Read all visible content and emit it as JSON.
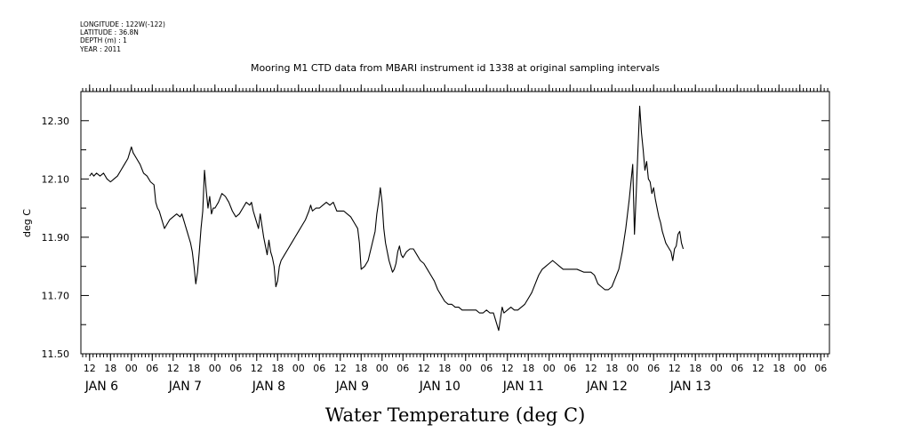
{
  "meta": {
    "longitude": "LONGITUDE : 122W(-122)",
    "latitude": "LATITUDE : 36.8N",
    "depth": "DEPTH (m) : 1",
    "year": "YEAR : 2011"
  },
  "chart_data": {
    "type": "line",
    "title": "Mooring M1 CTD data from MBARI instrument id 1338 at original sampling intervals",
    "xlabel": "Water Temperature (deg C)",
    "ylabel": "deg C",
    "xlim": [
      12,
      216
    ],
    "ylim": [
      11.5,
      12.4
    ],
    "yticks": [
      "11.50",
      "11.70",
      "11.90",
      "12.10",
      "12.30"
    ],
    "ytick_values": [
      11.5,
      11.7,
      11.9,
      12.1,
      12.3
    ],
    "hour_ticks": [
      {
        "x": 12,
        "label": "12"
      },
      {
        "x": 18,
        "label": "18"
      },
      {
        "x": 24,
        "label": "00"
      },
      {
        "x": 30,
        "label": "06"
      },
      {
        "x": 36,
        "label": "12"
      },
      {
        "x": 42,
        "label": "18"
      },
      {
        "x": 48,
        "label": "00"
      },
      {
        "x": 54,
        "label": "06"
      },
      {
        "x": 60,
        "label": "12"
      },
      {
        "x": 66,
        "label": "18"
      },
      {
        "x": 72,
        "label": "00"
      },
      {
        "x": 78,
        "label": "06"
      },
      {
        "x": 84,
        "label": "12"
      },
      {
        "x": 90,
        "label": "18"
      },
      {
        "x": 96,
        "label": "00"
      },
      {
        "x": 102,
        "label": "06"
      },
      {
        "x": 108,
        "label": "12"
      },
      {
        "x": 114,
        "label": "18"
      },
      {
        "x": 120,
        "label": "00"
      },
      {
        "x": 126,
        "label": "06"
      },
      {
        "x": 132,
        "label": "12"
      },
      {
        "x": 138,
        "label": "18"
      },
      {
        "x": 144,
        "label": "00"
      },
      {
        "x": 150,
        "label": "06"
      },
      {
        "x": 156,
        "label": "12"
      },
      {
        "x": 162,
        "label": "18"
      },
      {
        "x": 168,
        "label": "00"
      },
      {
        "x": 174,
        "label": "06"
      },
      {
        "x": 180,
        "label": "12"
      },
      {
        "x": 186,
        "label": "18"
      },
      {
        "x": 192,
        "label": "00"
      },
      {
        "x": 198,
        "label": "06"
      },
      {
        "x": 204,
        "label": "12"
      },
      {
        "x": 210,
        "label": "18"
      },
      {
        "x": 216,
        "label": "00"
      },
      {
        "x": 222,
        "label": "06"
      }
    ],
    "date_ticks": [
      {
        "x": 12,
        "label": "JAN 6"
      },
      {
        "x": 36,
        "label": "JAN 7"
      },
      {
        "x": 60,
        "label": "JAN 8"
      },
      {
        "x": 84,
        "label": "JAN 9"
      },
      {
        "x": 108,
        "label": "JAN 10"
      },
      {
        "x": 132,
        "label": "JAN 11"
      },
      {
        "x": 156,
        "label": "JAN 12"
      },
      {
        "x": 180,
        "label": "JAN 13"
      }
    ],
    "series": [
      {
        "values": [
          [
            12.0,
            12.11
          ],
          [
            12.6,
            12.12
          ],
          [
            13.2,
            12.11
          ],
          [
            14.0,
            12.12
          ],
          [
            15.0,
            12.11
          ],
          [
            16.0,
            12.12
          ],
          [
            17.0,
            12.1
          ],
          [
            18.0,
            12.09
          ],
          [
            19.0,
            12.1
          ],
          [
            20.0,
            12.11
          ],
          [
            21.0,
            12.13
          ],
          [
            22.0,
            12.15
          ],
          [
            23.0,
            12.17
          ],
          [
            24.0,
            12.21
          ],
          [
            24.5,
            12.19
          ],
          [
            25.5,
            12.17
          ],
          [
            26.5,
            12.15
          ],
          [
            27.5,
            12.12
          ],
          [
            28.5,
            12.11
          ],
          [
            29.5,
            12.09
          ],
          [
            30.5,
            12.08
          ],
          [
            31.0,
            12.02
          ],
          [
            31.5,
            12.0
          ],
          [
            32.0,
            11.99
          ],
          [
            32.5,
            11.97
          ],
          [
            33.0,
            11.95
          ],
          [
            33.5,
            11.93
          ],
          [
            34.0,
            11.94
          ],
          [
            35.0,
            11.96
          ],
          [
            36.0,
            11.97
          ],
          [
            37.0,
            11.98
          ],
          [
            38.0,
            11.97
          ],
          [
            38.5,
            11.98
          ],
          [
            39.0,
            11.96
          ],
          [
            39.5,
            11.94
          ],
          [
            40.0,
            11.92
          ],
          [
            40.5,
            11.9
          ],
          [
            41.0,
            11.88
          ],
          [
            41.5,
            11.85
          ],
          [
            42.0,
            11.8
          ],
          [
            42.5,
            11.74
          ],
          [
            43.0,
            11.78
          ],
          [
            43.5,
            11.85
          ],
          [
            44.0,
            11.93
          ],
          [
            44.5,
            11.99
          ],
          [
            45.0,
            12.13
          ],
          [
            45.5,
            12.06
          ],
          [
            46.0,
            12.0
          ],
          [
            46.5,
            12.04
          ],
          [
            47.0,
            11.98
          ],
          [
            47.5,
            12.0
          ],
          [
            48.0,
            12.0
          ],
          [
            49.0,
            12.02
          ],
          [
            50.0,
            12.05
          ],
          [
            51.0,
            12.04
          ],
          [
            52.0,
            12.02
          ],
          [
            53.0,
            11.99
          ],
          [
            54.0,
            11.97
          ],
          [
            55.0,
            11.98
          ],
          [
            56.0,
            12.0
          ],
          [
            57.0,
            12.02
          ],
          [
            58.0,
            12.01
          ],
          [
            58.5,
            12.02
          ],
          [
            59.0,
            11.99
          ],
          [
            59.5,
            11.97
          ],
          [
            60.0,
            11.95
          ],
          [
            60.5,
            11.93
          ],
          [
            61.0,
            11.98
          ],
          [
            61.5,
            11.94
          ],
          [
            62.0,
            11.9
          ],
          [
            62.5,
            11.87
          ],
          [
            63.0,
            11.84
          ],
          [
            63.5,
            11.89
          ],
          [
            64.0,
            11.85
          ],
          [
            64.5,
            11.83
          ],
          [
            65.0,
            11.8
          ],
          [
            65.5,
            11.73
          ],
          [
            66.0,
            11.75
          ],
          [
            66.5,
            11.8
          ],
          [
            67.0,
            11.82
          ],
          [
            68.0,
            11.84
          ],
          [
            69.0,
            11.86
          ],
          [
            70.0,
            11.88
          ],
          [
            71.0,
            11.9
          ],
          [
            72.0,
            11.92
          ],
          [
            73.0,
            11.94
          ],
          [
            74.0,
            11.96
          ],
          [
            75.0,
            11.99
          ],
          [
            75.5,
            12.01
          ],
          [
            76.0,
            11.99
          ],
          [
            77.0,
            12.0
          ],
          [
            78.0,
            12.0
          ],
          [
            79.0,
            12.01
          ],
          [
            80.0,
            12.02
          ],
          [
            81.0,
            12.01
          ],
          [
            82.0,
            12.02
          ],
          [
            83.0,
            11.99
          ],
          [
            84.0,
            11.99
          ],
          [
            85.0,
            11.99
          ],
          [
            86.0,
            11.98
          ],
          [
            87.0,
            11.97
          ],
          [
            88.0,
            11.95
          ],
          [
            89.0,
            11.93
          ],
          [
            89.5,
            11.88
          ],
          [
            90.0,
            11.79
          ],
          [
            91.0,
            11.8
          ],
          [
            92.0,
            11.82
          ],
          [
            93.0,
            11.87
          ],
          [
            94.0,
            11.92
          ],
          [
            94.5,
            11.98
          ],
          [
            95.0,
            12.02
          ],
          [
            95.5,
            12.07
          ],
          [
            96.0,
            12.02
          ],
          [
            96.5,
            11.93
          ],
          [
            97.0,
            11.88
          ],
          [
            97.5,
            11.85
          ],
          [
            98.0,
            11.82
          ],
          [
            98.5,
            11.8
          ],
          [
            99.0,
            11.78
          ],
          [
            99.5,
            11.79
          ],
          [
            100.0,
            11.81
          ],
          [
            100.5,
            11.85
          ],
          [
            101.0,
            11.87
          ],
          [
            101.5,
            11.84
          ],
          [
            102.0,
            11.83
          ],
          [
            103.0,
            11.85
          ],
          [
            104.0,
            11.86
          ],
          [
            105.0,
            11.86
          ],
          [
            106.0,
            11.84
          ],
          [
            107.0,
            11.82
          ],
          [
            108.0,
            11.81
          ],
          [
            109.0,
            11.79
          ],
          [
            110.0,
            11.77
          ],
          [
            111.0,
            11.75
          ],
          [
            112.0,
            11.72
          ],
          [
            113.0,
            11.7
          ],
          [
            114.0,
            11.68
          ],
          [
            115.0,
            11.67
          ],
          [
            116.0,
            11.67
          ],
          [
            117.0,
            11.66
          ],
          [
            118.0,
            11.66
          ],
          [
            119.0,
            11.65
          ],
          [
            120.0,
            11.65
          ],
          [
            121.0,
            11.65
          ],
          [
            122.0,
            11.65
          ],
          [
            123.0,
            11.65
          ],
          [
            124.0,
            11.64
          ],
          [
            125.0,
            11.64
          ],
          [
            126.0,
            11.65
          ],
          [
            127.0,
            11.64
          ],
          [
            128.0,
            11.64
          ],
          [
            128.5,
            11.62
          ],
          [
            129.0,
            11.6
          ],
          [
            129.5,
            11.58
          ],
          [
            130.0,
            11.62
          ],
          [
            130.5,
            11.66
          ],
          [
            131.0,
            11.64
          ],
          [
            132.0,
            11.65
          ],
          [
            133.0,
            11.66
          ],
          [
            134.0,
            11.65
          ],
          [
            135.0,
            11.65
          ],
          [
            136.0,
            11.66
          ],
          [
            137.0,
            11.67
          ],
          [
            138.0,
            11.69
          ],
          [
            139.0,
            11.71
          ],
          [
            140.0,
            11.74
          ],
          [
            141.0,
            11.77
          ],
          [
            142.0,
            11.79
          ],
          [
            143.0,
            11.8
          ],
          [
            144.0,
            11.81
          ],
          [
            145.0,
            11.82
          ],
          [
            146.0,
            11.81
          ],
          [
            147.0,
            11.8
          ],
          [
            148.0,
            11.79
          ],
          [
            150.0,
            11.79
          ],
          [
            152.0,
            11.79
          ],
          [
            154.0,
            11.78
          ],
          [
            156.0,
            11.78
          ],
          [
            157.0,
            11.77
          ],
          [
            158.0,
            11.74
          ],
          [
            159.0,
            11.73
          ],
          [
            160.0,
            11.72
          ],
          [
            161.0,
            11.72
          ],
          [
            162.0,
            11.73
          ],
          [
            163.0,
            11.76
          ],
          [
            164.0,
            11.79
          ],
          [
            165.0,
            11.85
          ],
          [
            166.0,
            11.93
          ],
          [
            167.0,
            12.03
          ],
          [
            167.5,
            12.09
          ],
          [
            168.0,
            12.15
          ],
          [
            168.5,
            11.91
          ],
          [
            169.0,
            12.05
          ],
          [
            169.5,
            12.2
          ],
          [
            170.0,
            12.35
          ],
          [
            170.5,
            12.26
          ],
          [
            171.0,
            12.2
          ],
          [
            171.5,
            12.13
          ],
          [
            172.0,
            12.16
          ],
          [
            172.5,
            12.1
          ],
          [
            173.0,
            12.09
          ],
          [
            173.5,
            12.05
          ],
          [
            174.0,
            12.07
          ],
          [
            174.5,
            12.03
          ],
          [
            175.0,
            12.0
          ],
          [
            175.5,
            11.97
          ],
          [
            176.0,
            11.95
          ],
          [
            176.5,
            11.92
          ],
          [
            177.0,
            11.9
          ],
          [
            177.5,
            11.88
          ],
          [
            178.0,
            11.87
          ],
          [
            178.5,
            11.86
          ],
          [
            179.0,
            11.85
          ],
          [
            179.5,
            11.82
          ],
          [
            180.0,
            11.86
          ],
          [
            180.5,
            11.87
          ],
          [
            181.0,
            11.91
          ],
          [
            181.5,
            11.92
          ],
          [
            182.0,
            11.88
          ],
          [
            182.5,
            11.86
          ]
        ]
      }
    ]
  }
}
